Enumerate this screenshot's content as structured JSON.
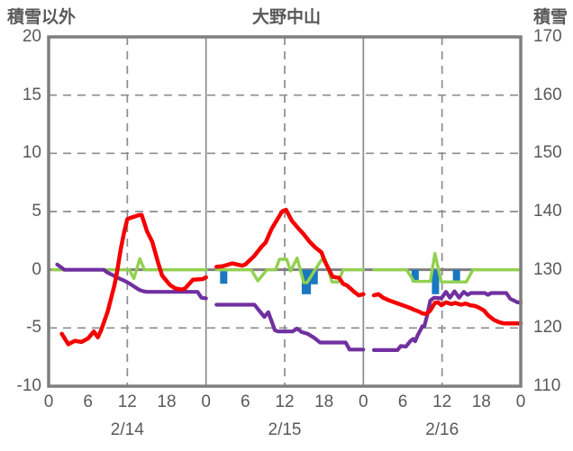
{
  "header": {
    "left_axis_title": "積雪以外",
    "chart_title": "大野中山",
    "right_axis_title": "積雪"
  },
  "chart_data": {
    "type": "line",
    "title": "大野中山",
    "left_axis": {
      "title": "積雪以外",
      "range": [
        -10,
        20
      ],
      "tick_labels": [
        "20",
        "15",
        "10",
        "5",
        "0",
        "-5",
        "-10"
      ],
      "tick_values": [
        20,
        15,
        10,
        5,
        0,
        -5,
        -10
      ]
    },
    "right_axis": {
      "title": "積雪",
      "range": [
        110,
        170
      ],
      "tick_labels": [
        "170",
        "160",
        "150",
        "140",
        "130",
        "120",
        "110"
      ],
      "tick_values": [
        170,
        160,
        150,
        140,
        130,
        120,
        110
      ],
      "mapping_note": "right_value = 130 + 2 * left_value"
    },
    "x_axis": {
      "range_hours": [
        0,
        72
      ],
      "tick_hours": [
        0,
        6,
        12,
        18,
        24,
        30,
        36,
        42,
        48,
        54,
        60,
        66,
        72
      ],
      "tick_labels": [
        "0",
        "6",
        "12",
        "18",
        "0",
        "6",
        "12",
        "18",
        "0",
        "6",
        "12",
        "18",
        "0"
      ],
      "date_labels": [
        "2/14",
        "2/15",
        "2/16"
      ],
      "date_center_hours": [
        12,
        36,
        60
      ],
      "solid_gridline_hours": [
        24,
        48
      ],
      "dashed_gridline_hours": [
        12,
        36,
        60
      ]
    },
    "grid": {
      "dashed_horizontal_left_values": [
        15,
        10,
        5,
        -5
      ],
      "zero_line_left_value": 0
    },
    "colors": {
      "red_line": "#f40000",
      "green_line": "#92d050",
      "purple_line": "#7030a0",
      "blue_bars": "#1879c0",
      "border_gray": "#7f7f7f",
      "grid_gray": "#8c8c8c",
      "text_gray": "#595959"
    },
    "series": [
      {
        "id": "blue-bars",
        "type": "bar",
        "axis": "left",
        "color": "#1879c0",
        "default_bar_width_hours": 1.1,
        "points": [
          {
            "h": 26.7,
            "v": -1.2
          },
          {
            "h": 39.3,
            "v": -2.1,
            "w": 1.4
          },
          {
            "h": 40.5,
            "v": -1.25
          },
          {
            "h": 55.9,
            "v": -1.05
          },
          {
            "h": 59.0,
            "v": -2.1
          },
          {
            "h": 62.2,
            "v": -1.0
          }
        ]
      },
      {
        "id": "green-line",
        "type": "line",
        "axis": "left",
        "color": "#92d050",
        "stroke_width": 3.4,
        "points": [
          [
            0.6,
            0
          ],
          [
            12.3,
            0
          ],
          [
            13,
            -0.75
          ],
          [
            13.9,
            0.95
          ],
          [
            14.6,
            0
          ],
          [
            24,
            0
          ],
          [
            25.6,
            0
          ],
          [
            30.9,
            0
          ],
          [
            31.9,
            -0.95
          ],
          [
            33.3,
            0
          ],
          [
            34.6,
            0
          ],
          [
            35.2,
            0.9
          ],
          [
            36.3,
            0.9
          ],
          [
            36.9,
            -0.1
          ],
          [
            37.9,
            1.0
          ],
          [
            38.9,
            -1.1
          ],
          [
            39.4,
            -1.1
          ],
          [
            41.6,
            0.85
          ],
          [
            42.2,
            0.85
          ],
          [
            43.2,
            -1.05
          ],
          [
            44.2,
            -1.05
          ],
          [
            44.9,
            0
          ],
          [
            48,
            0
          ],
          [
            49.6,
            0
          ],
          [
            54.6,
            0
          ],
          [
            55.7,
            -1.0
          ],
          [
            58.2,
            -1.0
          ],
          [
            58.9,
            1.4
          ],
          [
            59.9,
            -1.05
          ],
          [
            63.7,
            -1.05
          ],
          [
            64.7,
            0
          ],
          [
            72,
            0
          ]
        ],
        "gaps_after_hours": [
          24,
          48
        ]
      },
      {
        "id": "purple-line",
        "type": "line",
        "axis": "right",
        "color": "#7030a0",
        "stroke_width": 4.2,
        "points": [
          [
            1.3,
            0.45
          ],
          [
            2.4,
            0
          ],
          [
            8.4,
            0
          ],
          [
            9,
            -0.25
          ],
          [
            9.9,
            -0.5
          ],
          [
            10.8,
            -0.75
          ],
          [
            11.6,
            -0.95
          ],
          [
            12.4,
            -1.2
          ],
          [
            13.2,
            -1.5
          ],
          [
            13.9,
            -1.75
          ],
          [
            14.5,
            -1.85
          ],
          [
            15,
            -1.9
          ],
          [
            22.7,
            -1.9
          ],
          [
            23.3,
            -2.4
          ],
          [
            24,
            -2.45
          ],
          [
            25.6,
            -3.0
          ],
          [
            31.4,
            -3.0
          ],
          [
            32.1,
            -3.5
          ],
          [
            32.9,
            -4.05
          ],
          [
            33.5,
            -3.65
          ],
          [
            34.5,
            -5.2
          ],
          [
            35,
            -5.3
          ],
          [
            37.2,
            -5.3
          ],
          [
            37.9,
            -5.05
          ],
          [
            38.6,
            -5.35
          ],
          [
            39.5,
            -5.5
          ],
          [
            40.5,
            -5.85
          ],
          [
            41.4,
            -6.25
          ],
          [
            45.3,
            -6.25
          ],
          [
            45.9,
            -6.85
          ],
          [
            48,
            -6.85
          ],
          [
            49.6,
            -6.9
          ],
          [
            53.2,
            -6.9
          ],
          [
            53.7,
            -6.55
          ],
          [
            54.5,
            -6.6
          ],
          [
            55.2,
            -6.1
          ],
          [
            55.6,
            -5.95
          ],
          [
            55.9,
            -6.15
          ],
          [
            56.3,
            -5.6
          ],
          [
            56.6,
            -5.3
          ],
          [
            57.0,
            -4.85
          ],
          [
            57.3,
            -4.85
          ],
          [
            57.7,
            -4.0
          ],
          [
            58.2,
            -2.65
          ],
          [
            58.8,
            -2.4
          ],
          [
            59.9,
            -2.45
          ],
          [
            60.6,
            -1.9
          ],
          [
            61.2,
            -2.4
          ],
          [
            61.9,
            -1.85
          ],
          [
            62.6,
            -2.4
          ],
          [
            63.3,
            -1.9
          ],
          [
            63.9,
            -2.15
          ],
          [
            64.4,
            -2.0
          ],
          [
            66.5,
            -2.0
          ],
          [
            67.0,
            -2.15
          ],
          [
            67.5,
            -2.0
          ],
          [
            69.8,
            -2.0
          ],
          [
            70.4,
            -2.5
          ],
          [
            70.8,
            -2.6
          ],
          [
            71.5,
            -2.8
          ],
          [
            72,
            -2.8
          ]
        ],
        "gaps_after_hours": [
          24,
          48
        ]
      },
      {
        "id": "red-line",
        "type": "line",
        "axis": "left",
        "color": "#f40000",
        "stroke_width": 4.5,
        "points": [
          [
            2,
            -5.5
          ],
          [
            3,
            -6.4
          ],
          [
            4,
            -6.1
          ],
          [
            5,
            -6.2
          ],
          [
            6,
            -5.9
          ],
          [
            6.9,
            -5.3
          ],
          [
            7.5,
            -5.8
          ],
          [
            8,
            -5.2
          ],
          [
            9,
            -3.6
          ],
          [
            10,
            -1.4
          ],
          [
            10.4,
            -0.3
          ],
          [
            11,
            1.8
          ],
          [
            11.5,
            3.2
          ],
          [
            12,
            4.35
          ],
          [
            13,
            4.55
          ],
          [
            13.8,
            4.7
          ],
          [
            14.2,
            4.7
          ],
          [
            15,
            3.3
          ],
          [
            15.8,
            2.4
          ],
          [
            16.7,
            0.6
          ],
          [
            17.3,
            -0.5
          ],
          [
            18.5,
            -1.3
          ],
          [
            19.3,
            -1.6
          ],
          [
            20.3,
            -1.7
          ],
          [
            20.8,
            -1.6
          ],
          [
            21.7,
            -1.05
          ],
          [
            22,
            -0.85
          ],
          [
            23.5,
            -0.8
          ],
          [
            24,
            -0.65
          ],
          [
            25.6,
            0.25
          ],
          [
            26.5,
            0.3
          ],
          [
            28,
            0.55
          ],
          [
            29.5,
            0.35
          ],
          [
            30,
            0.45
          ],
          [
            31.3,
            1.15
          ],
          [
            32.5,
            2.0
          ],
          [
            33.1,
            2.35
          ],
          [
            34,
            3.5
          ],
          [
            34.9,
            4.35
          ],
          [
            35.6,
            5.0
          ],
          [
            36.2,
            5.15
          ],
          [
            37.1,
            4.2
          ],
          [
            38,
            3.6
          ],
          [
            38.9,
            3.05
          ],
          [
            39.8,
            2.4
          ],
          [
            40.7,
            1.9
          ],
          [
            41.6,
            1.5
          ],
          [
            42.1,
            0.75
          ],
          [
            43.3,
            -0.6
          ],
          [
            44.3,
            -0.7
          ],
          [
            44.9,
            -1.2
          ],
          [
            45.5,
            -1.35
          ],
          [
            46.5,
            -1.85
          ],
          [
            47.3,
            -2.2
          ],
          [
            48,
            -2.1
          ],
          [
            49.6,
            -2.2
          ],
          [
            50.3,
            -2.1
          ],
          [
            51,
            -2.4
          ],
          [
            52,
            -2.65
          ],
          [
            53,
            -2.85
          ],
          [
            54,
            -3.05
          ],
          [
            55,
            -3.25
          ],
          [
            55.8,
            -3.45
          ],
          [
            56.5,
            -3.6
          ],
          [
            57,
            -3.75
          ],
          [
            57.6,
            -3.8
          ],
          [
            58.2,
            -3.5
          ],
          [
            58.9,
            -2.85
          ],
          [
            59.4,
            -2.8
          ],
          [
            59.9,
            -3.05
          ],
          [
            60.6,
            -2.8
          ],
          [
            61.4,
            -2.95
          ],
          [
            62,
            -2.85
          ],
          [
            62.9,
            -3.0
          ],
          [
            63.6,
            -2.9
          ],
          [
            64.3,
            -3.05
          ],
          [
            65,
            -3.1
          ],
          [
            65.6,
            -3.25
          ],
          [
            66.4,
            -3.5
          ],
          [
            67,
            -3.9
          ],
          [
            67.9,
            -4.3
          ],
          [
            68.7,
            -4.5
          ],
          [
            69.4,
            -4.6
          ],
          [
            72,
            -4.6
          ]
        ],
        "gaps_after_hours": [
          24,
          48
        ]
      }
    ]
  }
}
